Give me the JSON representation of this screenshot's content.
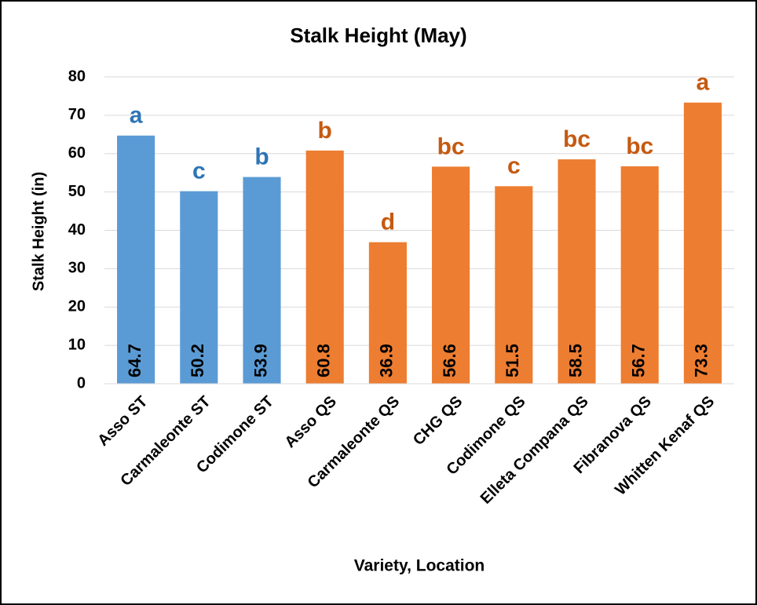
{
  "chart_data": {
    "type": "bar",
    "title": "Stalk Height (May)",
    "x_label": "Variety, Location",
    "y_label": "Stalk Height (in)",
    "categories": [
      "Asso ST",
      "Carmaleonte ST",
      "Codimone ST",
      "Asso QS",
      "Carmaleonte QS",
      "CHG QS",
      "Codimone QS",
      "Elleta Compana QS",
      "Fibranova QS",
      "Whitten Kenaf QS"
    ],
    "values": [
      64.7,
      50.2,
      53.9,
      60.8,
      36.9,
      56.6,
      51.5,
      58.5,
      56.7,
      73.3
    ],
    "annotations": [
      "a",
      "c",
      "b",
      "b",
      "d",
      "bc",
      "c",
      "bc",
      "bc",
      "a"
    ],
    "colors": [
      "#5b9bd5",
      "#5b9bd5",
      "#5b9bd5",
      "#ed7d31",
      "#ed7d31",
      "#ed7d31",
      "#ed7d31",
      "#ed7d31",
      "#ed7d31",
      "#ed7d31"
    ],
    "annotation_colors": [
      "#2e75b6",
      "#2e75b6",
      "#2e75b6",
      "#c55a11",
      "#c55a11",
      "#c55a11",
      "#c55a11",
      "#c55a11",
      "#c55a11",
      "#c55a11"
    ],
    "ylim": [
      0,
      80
    ],
    "yticks": [
      0,
      10,
      20,
      30,
      40,
      50,
      60,
      70,
      80
    ],
    "grid": true
  }
}
